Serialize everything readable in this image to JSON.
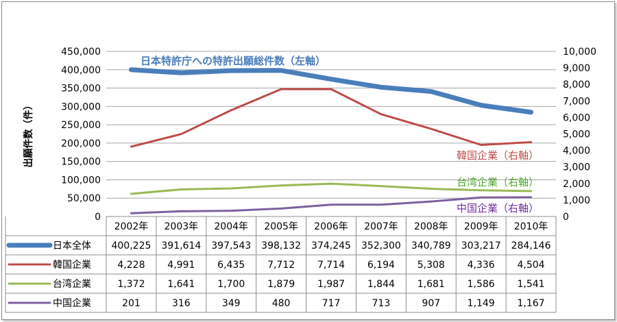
{
  "chart_data": {
    "type": "line",
    "categories": [
      "2002年",
      "2003年",
      "2004年",
      "2005年",
      "2006年",
      "2007年",
      "2008年",
      "2009年",
      "2010年"
    ],
    "ylabel_left": "出願件数（件）",
    "ylim_left": [
      0,
      450000
    ],
    "ylim_right": [
      0,
      10000
    ],
    "left_ticks": [
      "0",
      "50,000",
      "100,000",
      "150,000",
      "200,000",
      "250,000",
      "300,000",
      "350,000",
      "400,000",
      "450,000"
    ],
    "right_ticks": [
      "0",
      "1,000",
      "2,000",
      "3,000",
      "4,000",
      "5,000",
      "6,000",
      "7,000",
      "8,000",
      "9,000",
      "10,000"
    ],
    "grid": true,
    "series": [
      {
        "name": "日本全体",
        "axis": "left",
        "color": "#4a7ebb",
        "values": [
          400225,
          391614,
          397543,
          398132,
          374245,
          352300,
          340789,
          303217,
          284146
        ],
        "labels": [
          "400,225",
          "391,614",
          "397,543",
          "398,132",
          "374,245",
          "352,300",
          "340,789",
          "303,217",
          "284,146"
        ],
        "annotation": "日本特許庁への特許出願総件数（左軸）"
      },
      {
        "name": "韓国企業",
        "axis": "right",
        "color": "#be4b48",
        "values": [
          4228,
          4991,
          6435,
          7712,
          7714,
          6194,
          5308,
          4336,
          4504
        ],
        "labels": [
          "4,228",
          "4,991",
          "6,435",
          "7,712",
          "7,714",
          "6,194",
          "5,308",
          "4,336",
          "4,504"
        ],
        "annotation": "韓国企業（右軸）",
        "annotation_color": "#c0504d"
      },
      {
        "name": "台湾企業",
        "axis": "right",
        "color": "#98b954",
        "values": [
          1372,
          1641,
          1700,
          1879,
          1987,
          1844,
          1681,
          1586,
          1541
        ],
        "labels": [
          "1,372",
          "1,641",
          "1,700",
          "1,879",
          "1,987",
          "1,844",
          "1,681",
          "1,586",
          "1,541"
        ],
        "annotation": "台湾企業（右軸）",
        "annotation_color": "#4ea72e"
      },
      {
        "name": "中国企業",
        "axis": "right",
        "color": "#7d60a0",
        "values": [
          201,
          316,
          349,
          480,
          717,
          713,
          907,
          1149,
          1167
        ],
        "labels": [
          "201",
          "316",
          "349",
          "480",
          "717",
          "713",
          "907",
          "1,149",
          "1,167"
        ],
        "annotation": "中国企業（右軸）",
        "annotation_color": "#7030a0"
      }
    ]
  }
}
